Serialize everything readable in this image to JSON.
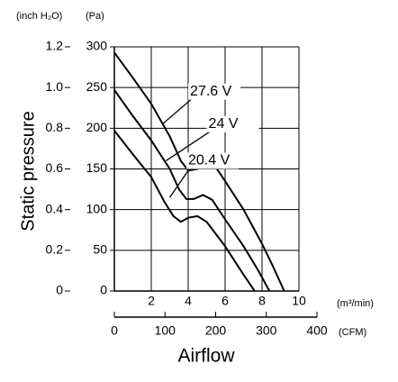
{
  "chart_data": {
    "type": "line",
    "x_label": "Airflow",
    "y_label": "Static pressure",
    "x_unit": "(m³/min)",
    "x2_unit": "(CFM)",
    "y_unit": "(Pa)",
    "y2_unit": "(inch H₂O)",
    "xlim": [
      0,
      10
    ],
    "xticks": [
      2,
      4,
      6,
      8,
      10
    ],
    "x2lim": [
      0,
      400
    ],
    "x2ticks": [
      0,
      100,
      200,
      300,
      400
    ],
    "ylim": [
      0,
      300
    ],
    "yticks": [
      0,
      50,
      100,
      150,
      200,
      250,
      300
    ],
    "y2lim": [
      0,
      1.2
    ],
    "y2ticks": [
      0,
      0.2,
      0.4,
      0.6,
      0.8,
      {
        "value": 1,
        "label": "1.0"
      },
      1.2
    ],
    "grid": true,
    "series": [
      {
        "name": "27.6 V",
        "color": "#000000",
        "x": [
          0,
          1,
          2,
          3,
          3.6,
          4,
          4.5,
          5,
          5.5,
          6,
          7,
          8,
          8.6,
          9.2
        ],
        "values": [
          293,
          262,
          230,
          190,
          160,
          148,
          150,
          156,
          152,
          135,
          100,
          58,
          30,
          0
        ]
      },
      {
        "name": "24 V",
        "color": "#000000",
        "x": [
          0,
          1,
          2,
          3,
          3.5,
          3.9,
          4.3,
          4.8,
          5.3,
          6,
          7,
          7.8,
          8.4
        ],
        "values": [
          247,
          215,
          185,
          150,
          125,
          113,
          113,
          118,
          112,
          88,
          55,
          25,
          0
        ]
      },
      {
        "name": "20.4 V",
        "color": "#000000",
        "x": [
          0,
          1,
          2,
          2.7,
          3.2,
          3.6,
          4,
          4.5,
          5,
          6,
          7,
          7.6
        ],
        "values": [
          197,
          168,
          140,
          110,
          92,
          85,
          90,
          92,
          85,
          55,
          20,
          0
        ]
      }
    ]
  }
}
